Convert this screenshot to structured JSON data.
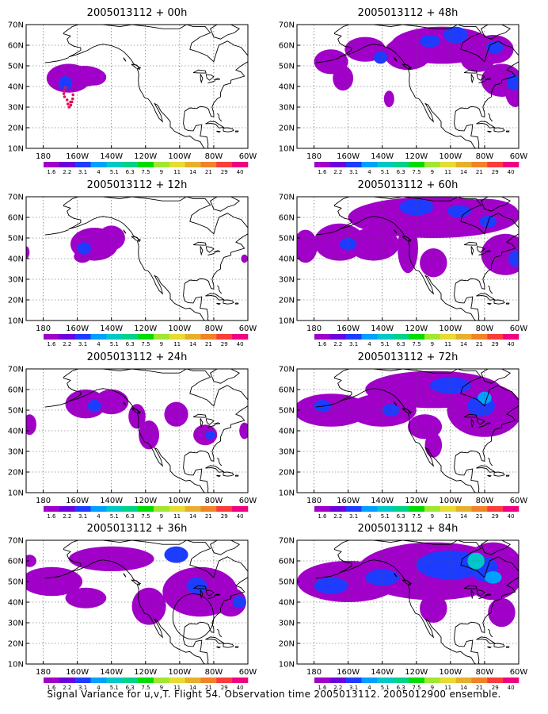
{
  "panels": [
    {
      "title": "2005013112 + 00h",
      "col": 0,
      "row": 0
    },
    {
      "title": "2005013112 + 48h",
      "col": 1,
      "row": 0
    },
    {
      "title": "2005013112 + 12h",
      "col": 0,
      "row": 1
    },
    {
      "title": "2005013112 + 60h",
      "col": 1,
      "row": 1
    },
    {
      "title": "2005013112 + 24h",
      "col": 0,
      "row": 2
    },
    {
      "title": "2005013112 + 72h",
      "col": 1,
      "row": 2
    },
    {
      "title": "2005013112 + 36h",
      "col": 0,
      "row": 3
    },
    {
      "title": "2005013112 + 84h",
      "col": 1,
      "row": 3
    }
  ],
  "axes": {
    "lat_labels": [
      "70N",
      "60N",
      "50N",
      "40N",
      "30N",
      "20N",
      "10N"
    ],
    "lon_labels": [
      "180",
      "160W",
      "140W",
      "120W",
      "100W",
      "80W",
      "60W"
    ],
    "lat_range": [
      10,
      70
    ],
    "lon_range": [
      -190,
      -60
    ],
    "grid": "dotted"
  },
  "colorbar": {
    "labels": [
      "1.6",
      "2.2",
      "3.1",
      "4",
      "5.1",
      "6.3",
      "7.5",
      "9",
      "11",
      "14",
      "21",
      "29",
      "40"
    ],
    "colors": [
      "#a000c8",
      "#6e00dc",
      "#1e3cff",
      "#00a0ff",
      "#00c8c8",
      "#00d28c",
      "#00dc00",
      "#a0e632",
      "#e6dc32",
      "#e6af2d",
      "#f08228",
      "#fa3c3c",
      "#f00082"
    ]
  },
  "caption": "Signal Variance for u,v,T. Flight 54. Observation time 2005013112. 2005012900 ensemble."
}
